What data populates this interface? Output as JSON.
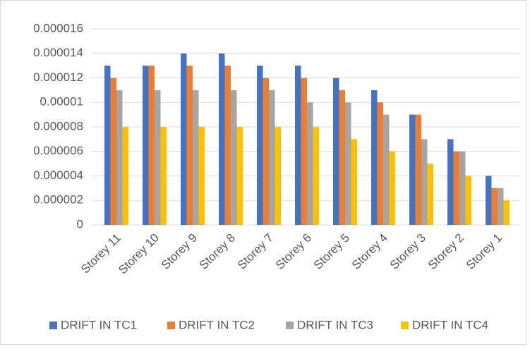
{
  "chart_data": {
    "type": "bar",
    "categories": [
      "Storey 11",
      "Storey 10",
      "Storey 9",
      "Storey 8",
      "Storey 7",
      "Storey 6",
      "Storey 5",
      "Storey 4",
      "Storey 3",
      "Storey 2",
      "Storey 1"
    ],
    "series": [
      {
        "name": "DRIFT IN TC1",
        "color": "#4472c4",
        "values": [
          1.3e-05,
          1.3e-05,
          1.4e-05,
          1.4e-05,
          1.3e-05,
          1.3e-05,
          1.2e-05,
          1.1e-05,
          9e-06,
          7e-06,
          4e-06
        ]
      },
      {
        "name": "DRIFT IN TC2",
        "color": "#ed7d31",
        "values": [
          1.2e-05,
          1.3e-05,
          1.3e-05,
          1.3e-05,
          1.2e-05,
          1.2e-05,
          1.1e-05,
          1e-05,
          9e-06,
          6e-06,
          3e-06
        ]
      },
      {
        "name": "DRIFT IN TC3",
        "color": "#a5a5a5",
        "values": [
          1.1e-05,
          1.1e-05,
          1.1e-05,
          1.1e-05,
          1.1e-05,
          1e-05,
          1e-05,
          9e-06,
          7e-06,
          6e-06,
          3e-06
        ]
      },
      {
        "name": "DRIFT IN TC4",
        "color": "#ffc000",
        "values": [
          8e-06,
          8e-06,
          8e-06,
          8e-06,
          8e-06,
          8e-06,
          7e-06,
          6e-06,
          5e-06,
          4e-06,
          2e-06
        ]
      }
    ],
    "ylim": [
      0,
      1.6e-05
    ],
    "yticks": [
      0,
      2e-06,
      4e-06,
      6e-06,
      8e-06,
      1e-05,
      1.2e-05,
      1.4e-05,
      1.6e-05
    ],
    "grid": true,
    "legend": "bottom"
  }
}
